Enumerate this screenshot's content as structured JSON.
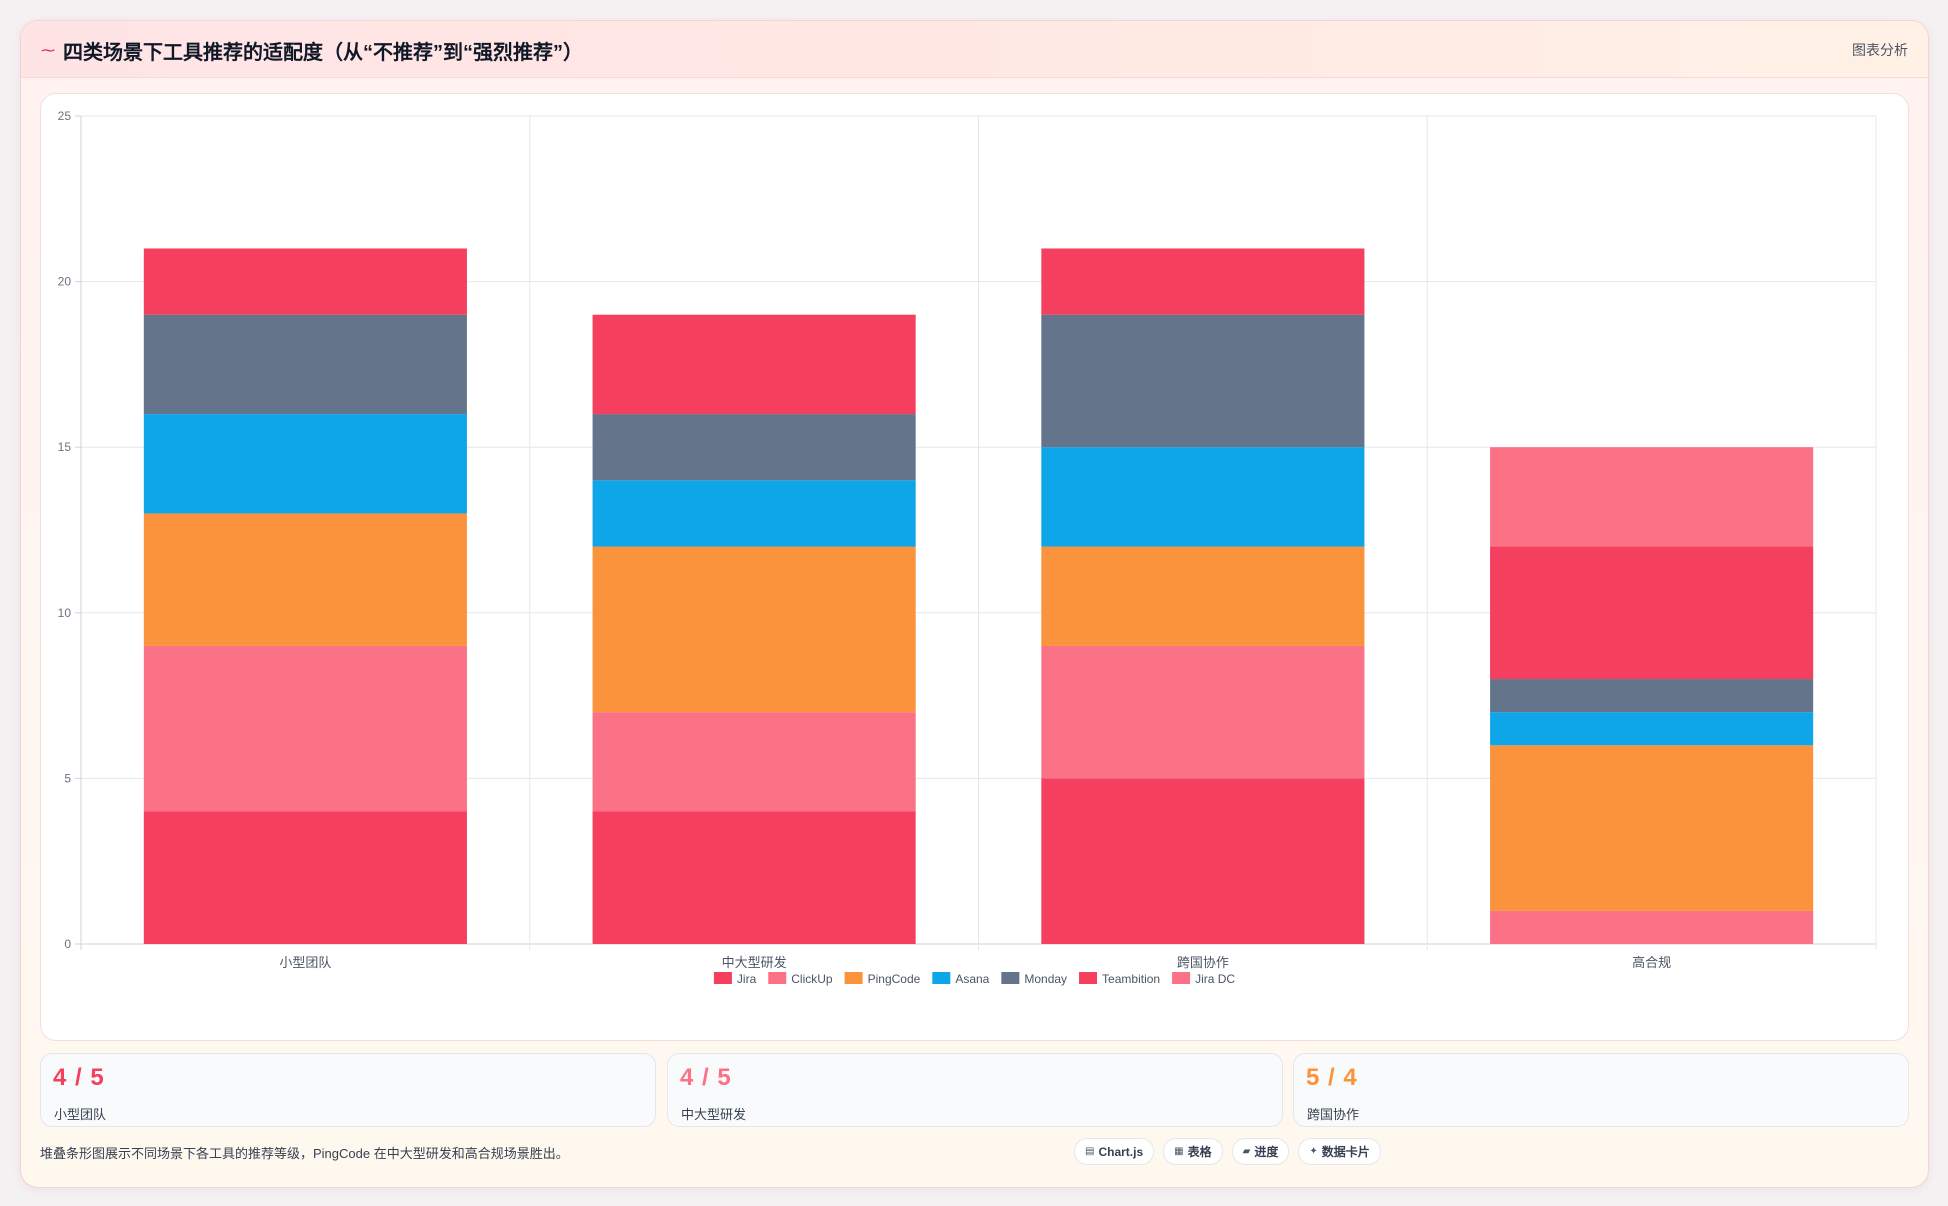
{
  "header": {
    "title": "四类场景下工具推荐的适配度（从“不推荐”到“强烈推荐”）",
    "link": "图表分析"
  },
  "chart_data": {
    "type": "bar",
    "stacked": true,
    "categories": [
      "小型团队",
      "中大型研发",
      "跨国协作",
      "高合规"
    ],
    "series": [
      {
        "name": "Jira",
        "color": "#f43f5e",
        "values": [
          4,
          4,
          5,
          0
        ]
      },
      {
        "name": "ClickUp",
        "color": "#fb7185",
        "values": [
          5,
          3,
          4,
          1
        ]
      },
      {
        "name": "PingCode",
        "color": "#fb923c",
        "values": [
          4,
          5,
          3,
          5
        ]
      },
      {
        "name": "Asana",
        "color": "#0ea5e9",
        "values": [
          3,
          2,
          3,
          1
        ]
      },
      {
        "name": "Monday",
        "color": "#64748b",
        "values": [
          3,
          2,
          4,
          1
        ]
      },
      {
        "name": "Teambition",
        "color": "#f43f5e",
        "values": [
          2,
          3,
          2,
          4
        ]
      },
      {
        "name": "Jira DC",
        "color": "#fb7185",
        "values": [
          0,
          0,
          0,
          3
        ]
      }
    ],
    "ylim": [
      0,
      25
    ],
    "yticks": [
      0,
      5,
      10,
      15,
      20,
      25
    ],
    "grid": true,
    "legend": "bottom"
  },
  "stats": [
    {
      "value": "4 / 5",
      "label": "小型团队",
      "color": "#f43f5e"
    },
    {
      "value": "4 / 5",
      "label": "中大型研发",
      "color": "#fb7185"
    },
    {
      "value": "5 / 4",
      "label": "跨国协作",
      "color": "#fb923c"
    }
  ],
  "footer": {
    "text": "堆叠条形图展示不同场景下各工具的推荐等级，PingCode 在中大型研发和高合规场景胜出。",
    "chips": [
      {
        "icon": "chart-icon",
        "glyph": "▤",
        "label": "Chart.js"
      },
      {
        "icon": "table-icon",
        "glyph": "▦",
        "label": "表格"
      },
      {
        "icon": "progress-icon",
        "glyph": "▰",
        "label": "进度"
      },
      {
        "icon": "card-icon",
        "glyph": "✦",
        "label": "数据卡片"
      }
    ]
  }
}
